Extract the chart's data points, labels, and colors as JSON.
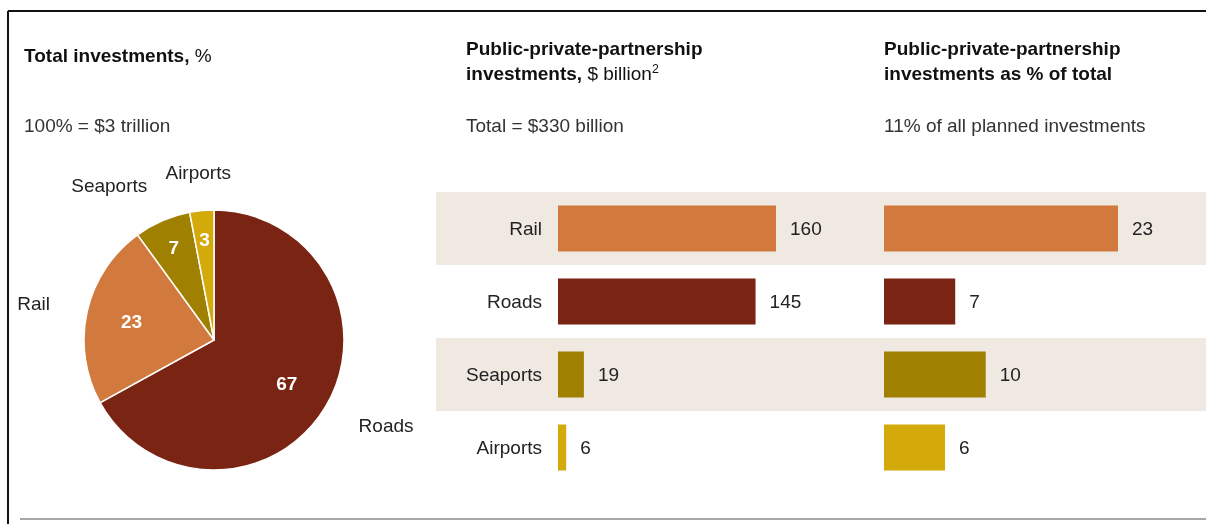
{
  "chart_data": [
    {
      "type": "pie",
      "title": "Total investments, %",
      "subtitle": "100% = $3 trillion",
      "categories": [
        "Roads",
        "Rail",
        "Seaports",
        "Airports"
      ],
      "values": [
        67,
        23,
        7,
        3
      ],
      "colors": [
        "#7a2514",
        "#d27a3e",
        "#a08000",
        "#d4a90a"
      ],
      "data_labels": true
    },
    {
      "type": "bar",
      "orientation": "horizontal",
      "title": "Public-private-partnership investments, $ billion$^{2}$",
      "subtitle": "Total = $330 billion",
      "categories": [
        "Rail",
        "Roads",
        "Seaports",
        "Airports"
      ],
      "values": [
        160,
        145,
        19,
        6
      ],
      "colors": [
        "#d27a3e",
        "#7a2514",
        "#a08000",
        "#d4a90a"
      ],
      "data_labels": true
    },
    {
      "type": "bar",
      "orientation": "horizontal",
      "title": "Public-private-partnership investments as % of total",
      "subtitle": "11% of all planned investments",
      "categories": [
        null,
        null,
        null,
        null
      ],
      "values": [
        23,
        7,
        10,
        6
      ],
      "colors": [
        "#d27a3e",
        "#7a2514",
        "#a08000",
        "#d4a90a"
      ],
      "data_labels": true
    }
  ]
}
